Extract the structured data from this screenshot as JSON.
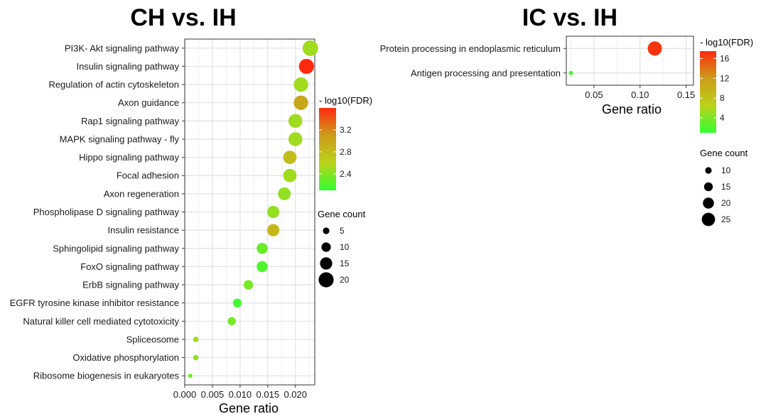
{
  "chart_data": [
    {
      "type": "scatter",
      "title": "CH vs. IH",
      "xlabel": "Gene ratio",
      "ylabel": "",
      "xlim": [
        0,
        0.0235
      ],
      "xticks": [
        "0.000",
        "0.005",
        "0.010",
        "0.015",
        "0.020"
      ],
      "xtick_values": [
        0,
        0.005,
        0.01,
        0.015,
        0.02
      ],
      "grid": true,
      "categories": [
        "PI3K- Akt signaling pathway",
        "Insulin signaling pathway",
        "Regulation of actin cytoskeleton",
        "Axon guidance",
        "Rap1 signaling pathway",
        "MAPK signaling pathway -  fly",
        "Hippo signaling pathway",
        "Focal adhesion",
        "Axon regeneration",
        "Phospholipase D signaling pathway",
        "Insulin resistance",
        "Sphingolipid signaling pathway",
        "FoxO signaling pathway",
        "ErbB signaling pathway",
        "EGFR tyrosine kinase inhibitor resistance",
        "Natural killer cell mediated cytotoxicity",
        "Spliceosome",
        "Oxidative phosphorylation",
        "Ribosome biogenesis in eukaryotes"
      ],
      "points": [
        {
          "gene_ratio": 0.0227,
          "gene_count": 21,
          "neg_log10_fdr": 2.5
        },
        {
          "gene_ratio": 0.022,
          "gene_count": 20,
          "neg_log10_fdr": 3.6
        },
        {
          "gene_ratio": 0.021,
          "gene_count": 19,
          "neg_log10_fdr": 2.5
        },
        {
          "gene_ratio": 0.021,
          "gene_count": 19,
          "neg_log10_fdr": 3.0
        },
        {
          "gene_ratio": 0.02,
          "gene_count": 18,
          "neg_log10_fdr": 2.5
        },
        {
          "gene_ratio": 0.02,
          "gene_count": 18,
          "neg_log10_fdr": 2.5
        },
        {
          "gene_ratio": 0.019,
          "gene_count": 17,
          "neg_log10_fdr": 2.8
        },
        {
          "gene_ratio": 0.019,
          "gene_count": 17,
          "neg_log10_fdr": 2.5
        },
        {
          "gene_ratio": 0.018,
          "gene_count": 16,
          "neg_log10_fdr": 2.45
        },
        {
          "gene_ratio": 0.016,
          "gene_count": 15,
          "neg_log10_fdr": 2.45
        },
        {
          "gene_ratio": 0.016,
          "gene_count": 15,
          "neg_log10_fdr": 2.85
        },
        {
          "gene_ratio": 0.014,
          "gene_count": 13,
          "neg_log10_fdr": 2.3
        },
        {
          "gene_ratio": 0.014,
          "gene_count": 13,
          "neg_log10_fdr": 2.2
        },
        {
          "gene_ratio": 0.0115,
          "gene_count": 10,
          "neg_log10_fdr": 2.35
        },
        {
          "gene_ratio": 0.0095,
          "gene_count": 9,
          "neg_log10_fdr": 2.15
        },
        {
          "gene_ratio": 0.0085,
          "gene_count": 8,
          "neg_log10_fdr": 2.35
        },
        {
          "gene_ratio": 0.002,
          "gene_count": 3,
          "neg_log10_fdr": 2.5
        },
        {
          "gene_ratio": 0.002,
          "gene_count": 3,
          "neg_log10_fdr": 2.45
        },
        {
          "gene_ratio": 0.001,
          "gene_count": 1,
          "neg_log10_fdr": 2.3
        }
      ],
      "color_scale": {
        "title": "- log10(FDR)",
        "min": 2.1,
        "max": 3.6,
        "ticks": [
          2.4,
          2.8,
          3.2
        ],
        "tick_labels": [
          "2.4",
          "2.8",
          "3.2"
        ],
        "colors": [
          "#33ff33",
          "#bbd21a",
          "#cc9c1a",
          "#ff2a0e"
        ]
      },
      "size_legend": {
        "title": "Gene count",
        "values": [
          5,
          10,
          15,
          20
        ],
        "labels": [
          "5",
          "10",
          "15",
          "20"
        ],
        "min_count": 1,
        "max_count": 21
      }
    },
    {
      "type": "scatter",
      "title": "IC vs. IH",
      "xlabel": "Gene ratio",
      "ylabel": "",
      "xlim": [
        0.02,
        0.158
      ],
      "xticks": [
        "0.05",
        "0.10",
        "0.15"
      ],
      "xtick_values": [
        0.05,
        0.1,
        0.15
      ],
      "grid": true,
      "categories": [
        "Protein processing in endoplasmic reticulum",
        "Antigen processing and presentation"
      ],
      "points": [
        {
          "gene_ratio": 0.116,
          "gene_count": 27,
          "neg_log10_fdr": 17
        },
        {
          "gene_ratio": 0.025,
          "gene_count": 5,
          "neg_log10_fdr": 2
        }
      ],
      "color_scale": {
        "title": "- log10(FDR)",
        "min": 1,
        "max": 17.5,
        "ticks": [
          4,
          8,
          12,
          16
        ],
        "tick_labels": [
          "4",
          "8",
          "12",
          "16"
        ],
        "colors": [
          "#33ff33",
          "#bbd21a",
          "#cc9c1a",
          "#ff2a0e"
        ]
      },
      "size_legend": {
        "title": "Gene count",
        "values": [
          10,
          15,
          20,
          25
        ],
        "labels": [
          "10",
          "15",
          "20",
          "25"
        ],
        "min_count": 5,
        "max_count": 27
      }
    }
  ]
}
